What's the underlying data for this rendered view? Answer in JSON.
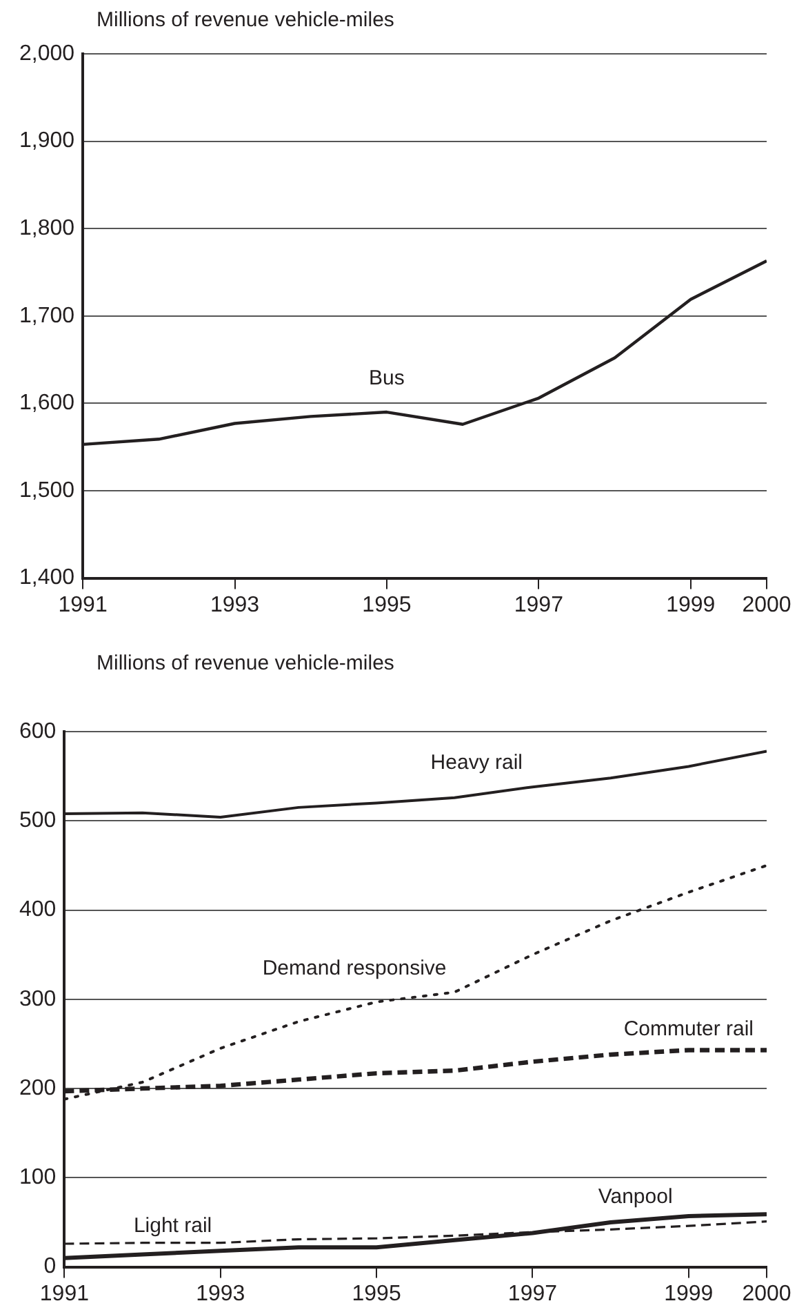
{
  "chart_data": [
    {
      "type": "line",
      "ylabel": "Millions of revenue vehicle-miles",
      "x": [
        1991,
        1992,
        1993,
        1994,
        1995,
        1996,
        1997,
        1998,
        1999,
        2000
      ],
      "xlim": [
        1991,
        2000
      ],
      "xticks": [
        1991,
        1993,
        1995,
        1997,
        1999,
        2000
      ],
      "ylim": [
        1400,
        2000
      ],
      "yticks": [
        {
          "value": 1400,
          "label": "1,400"
        },
        {
          "value": 1500,
          "label": "1,500"
        },
        {
          "value": 1600,
          "label": "1,600"
        },
        {
          "value": 1700,
          "label": "1,700"
        },
        {
          "value": 1800,
          "label": "1,800"
        },
        {
          "value": 1900,
          "label": "1,900"
        },
        {
          "value": 2000,
          "label": "2,000"
        }
      ],
      "grid": "y",
      "legend": false,
      "marker": "none",
      "series": [
        {
          "name": "Bus",
          "color": "#231f20",
          "line_style": "solid",
          "values": [
            1553,
            1559,
            1577,
            1585,
            1590,
            1576,
            1606,
            1652,
            1719,
            1763
          ]
        }
      ]
    },
    {
      "type": "line",
      "ylabel": "Millions of revenue vehicle-miles",
      "x": [
        1991,
        1992,
        1993,
        1994,
        1995,
        1996,
        1997,
        1998,
        1999,
        2000
      ],
      "xlim": [
        1991,
        2000
      ],
      "xticks": [
        1991,
        1993,
        1995,
        1997,
        1999,
        2000
      ],
      "ylim": [
        0,
        600
      ],
      "yticks": [
        0,
        100,
        200,
        300,
        400,
        500,
        600
      ],
      "grid": "y",
      "legend": false,
      "marker": "none",
      "series": [
        {
          "name": "Heavy rail",
          "color": "#231f20",
          "line_style": "solid",
          "values": [
            508,
            509,
            504,
            515,
            520,
            526,
            538,
            548,
            561,
            578
          ]
        },
        {
          "name": "Demand responsive",
          "color": "#231f20",
          "line_style": "dotted",
          "values": [
            188,
            207,
            245,
            275,
            297,
            308,
            350,
            388,
            420,
            450
          ]
        },
        {
          "name": "Commuter rail",
          "color": "#231f20",
          "line_style": "dashed",
          "values": [
            197,
            200,
            203,
            210,
            217,
            220,
            230,
            238,
            243,
            243
          ]
        },
        {
          "name": "Light rail",
          "color": "#231f20",
          "line_style": "dashed",
          "values": [
            26,
            27,
            27,
            31,
            32,
            35,
            39,
            42,
            46,
            51
          ]
        },
        {
          "name": "Vanpool",
          "color": "#231f20",
          "line_style": "solid",
          "values": [
            10,
            14,
            18,
            22,
            22,
            30,
            38,
            50,
            57,
            59
          ]
        }
      ]
    }
  ]
}
